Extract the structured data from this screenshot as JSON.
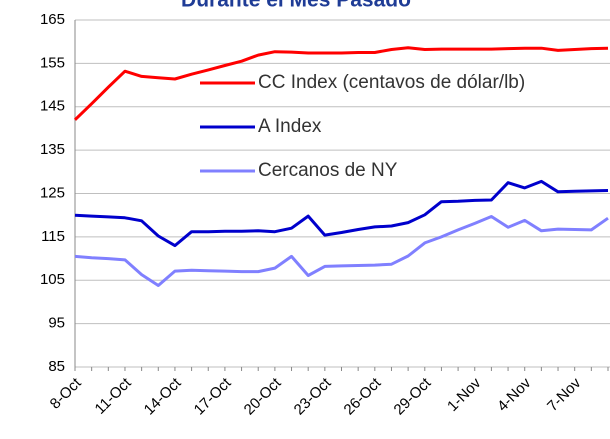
{
  "chart_data": {
    "type": "line",
    "title": "Durante el Mes Pasado",
    "categories": [
      "8-Oct",
      null,
      null,
      "11-Oct",
      null,
      null,
      "14-Oct",
      null,
      null,
      "17-Oct",
      null,
      null,
      "20-Oct",
      null,
      null,
      "23-Oct",
      null,
      null,
      "26-Oct",
      null,
      null,
      "29-Oct",
      null,
      null,
      "1-Nov",
      null,
      null,
      "4-Nov",
      null,
      null,
      "7-Nov",
      null,
      null
    ],
    "series": [
      {
        "name": "CC Index (centavos de dólar/lb)",
        "color": "#ff0000",
        "values": [
          142,
          145.7,
          149.5,
          153.2,
          152,
          151.7,
          151.4,
          152.5,
          153.5,
          154.5,
          155.5,
          156.9,
          157.7,
          157.6,
          157.4,
          157.4,
          157.4,
          157.5,
          157.5,
          158.2,
          158.6,
          158.2,
          158.3,
          158.3,
          158.3,
          158.3,
          158.4,
          158.5,
          158.5,
          158,
          158.2,
          158.4,
          158.5
        ]
      },
      {
        "name": "A Index",
        "color": "#0000cc",
        "values": [
          120,
          119.8,
          119.6,
          119.4,
          118.7,
          115.2,
          113,
          116.2,
          116.2,
          116.3,
          116.3,
          116.4,
          116.2,
          117,
          119.8,
          115.4,
          116,
          116.7,
          117.3,
          117.5,
          118.3,
          120.1,
          123.1,
          123.2,
          123.4,
          123.5,
          127.5,
          126.3,
          127.8,
          125.4,
          125.5,
          125.6,
          125.7
        ]
      },
      {
        "name": "Cercanos de NY",
        "color": "#8080ff",
        "values": [
          110.5,
          110.2,
          110,
          109.7,
          106.3,
          103.8,
          107.1,
          107.3,
          107.2,
          107.1,
          107,
          107,
          107.8,
          110.5,
          106.1,
          108.2,
          108.3,
          108.4,
          108.5,
          108.7,
          110.6,
          113.6,
          115,
          116.6,
          118.1,
          119.7,
          117.2,
          118.8,
          116.4,
          116.8,
          116.7,
          116.6,
          119.3
        ]
      }
    ],
    "ylim": [
      85,
      165
    ],
    "yticks": [
      85,
      95,
      105,
      115,
      125,
      135,
      145,
      155,
      165
    ],
    "grid": true,
    "legend": "upper center"
  }
}
